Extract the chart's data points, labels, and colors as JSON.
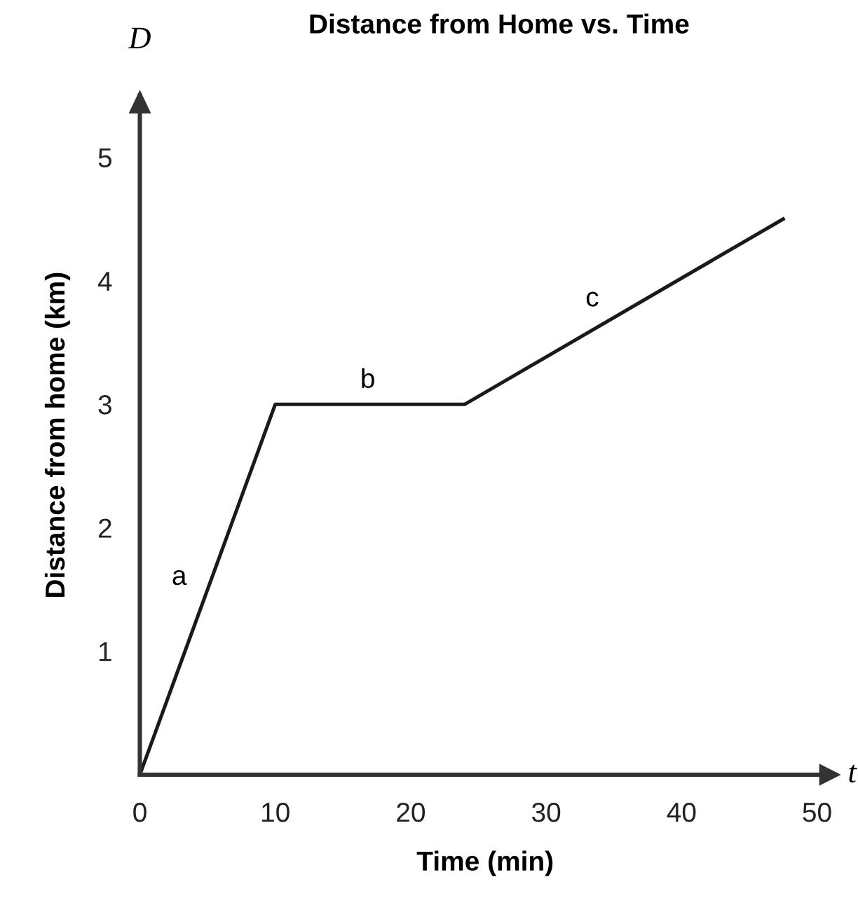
{
  "chart_data": {
    "type": "line",
    "title": "Distance from Home vs. Time",
    "xlabel": "Time (min)",
    "ylabel": "Distance from home (km)",
    "x": [
      0,
      10,
      24,
      47.5
    ],
    "series": [
      {
        "color": "#1a1a1a",
        "values": [
          0,
          3,
          3,
          4.5
        ]
      }
    ],
    "xlim": [
      0,
      51
    ],
    "ylim": [
      0,
      5.5
    ],
    "xticks": [
      0,
      10,
      20,
      30,
      40,
      50
    ],
    "yticks": [
      1,
      2,
      3,
      4,
      5
    ],
    "annotations": [
      "D",
      "t",
      "a",
      "b",
      "c"
    ],
    "grid": false,
    "legend": false,
    "marker": "none",
    "line_style": "solid"
  }
}
